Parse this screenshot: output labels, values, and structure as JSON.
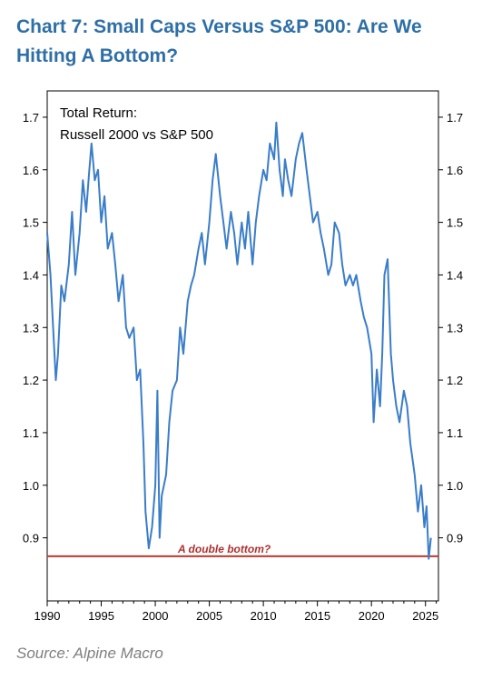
{
  "title": "Chart 7: Small Caps Versus S&P 500: Are We Hitting A Bottom?",
  "source": "Source: Alpine Macro",
  "chart_data": {
    "type": "line",
    "title_line1": "Total Return:",
    "title_line2": "Russell 2000 vs S&P 500",
    "annotation": "A double bottom?",
    "reference_line": {
      "y": 0.865,
      "color": "#c0392b"
    },
    "series_color": "#3a7dc9",
    "xlim": [
      1990,
      2026.2
    ],
    "ylim": [
      0.78,
      1.75
    ],
    "x_ticks": [
      1990,
      1995,
      2000,
      2005,
      2010,
      2015,
      2020,
      2025
    ],
    "y_ticks": [
      0.9,
      1.0,
      1.1,
      1.2,
      1.3,
      1.4,
      1.5,
      1.6,
      1.7
    ],
    "y_tick_labels": [
      "0.9",
      "1.0",
      "1.1",
      "1.2",
      "1.3",
      "1.4",
      "1.5",
      "1.6",
      "1.7"
    ],
    "grid": false,
    "series": [
      {
        "x": [
          1990.0,
          1990.3,
          1990.6,
          1990.8,
          1991.0,
          1991.3,
          1991.6,
          1992.0,
          1992.3,
          1992.6,
          1993.0,
          1993.3,
          1993.6,
          1993.9,
          1994.1,
          1994.4,
          1994.7,
          1995.0,
          1995.3,
          1995.6,
          1996.0,
          1996.3,
          1996.6,
          1997.0,
          1997.3,
          1997.6,
          1998.0,
          1998.3,
          1998.6,
          1998.9,
          1999.1,
          1999.4,
          1999.7,
          2000.0,
          2000.2,
          2000.4,
          2000.6,
          2000.8,
          2001.0,
          2001.3,
          2001.6,
          2002.0,
          2002.3,
          2002.6,
          2003.0,
          2003.3,
          2003.6,
          2004.0,
          2004.3,
          2004.6,
          2005.0,
          2005.3,
          2005.6,
          2006.0,
          2006.3,
          2006.6,
          2007.0,
          2007.3,
          2007.6,
          2008.0,
          2008.3,
          2008.6,
          2009.0,
          2009.3,
          2009.6,
          2010.0,
          2010.3,
          2010.6,
          2011.0,
          2011.2,
          2011.5,
          2011.8,
          2012.0,
          2012.3,
          2012.6,
          2013.0,
          2013.3,
          2013.6,
          2014.0,
          2014.3,
          2014.6,
          2015.0,
          2015.3,
          2015.6,
          2016.0,
          2016.3,
          2016.6,
          2017.0,
          2017.3,
          2017.6,
          2018.0,
          2018.3,
          2018.6,
          2019.0,
          2019.3,
          2019.6,
          2020.0,
          2020.2,
          2020.5,
          2020.8,
          2021.0,
          2021.2,
          2021.5,
          2021.8,
          2022.0,
          2022.3,
          2022.6,
          2023.0,
          2023.3,
          2023.6,
          2024.0,
          2024.3,
          2024.6,
          2024.9,
          2025.1,
          2025.3,
          2025.5
        ],
        "y": [
          1.48,
          1.4,
          1.28,
          1.2,
          1.25,
          1.38,
          1.35,
          1.42,
          1.52,
          1.4,
          1.48,
          1.58,
          1.52,
          1.6,
          1.65,
          1.58,
          1.6,
          1.5,
          1.55,
          1.45,
          1.48,
          1.42,
          1.35,
          1.4,
          1.3,
          1.28,
          1.3,
          1.2,
          1.22,
          1.08,
          0.95,
          0.88,
          0.92,
          1.0,
          1.18,
          0.9,
          0.98,
          1.0,
          1.02,
          1.12,
          1.18,
          1.2,
          1.3,
          1.25,
          1.35,
          1.38,
          1.4,
          1.45,
          1.48,
          1.42,
          1.5,
          1.58,
          1.63,
          1.55,
          1.5,
          1.45,
          1.52,
          1.48,
          1.42,
          1.5,
          1.45,
          1.52,
          1.42,
          1.5,
          1.55,
          1.6,
          1.58,
          1.65,
          1.62,
          1.69,
          1.6,
          1.55,
          1.62,
          1.58,
          1.55,
          1.62,
          1.65,
          1.67,
          1.6,
          1.55,
          1.5,
          1.52,
          1.48,
          1.45,
          1.4,
          1.42,
          1.5,
          1.48,
          1.42,
          1.38,
          1.4,
          1.38,
          1.4,
          1.35,
          1.32,
          1.3,
          1.25,
          1.12,
          1.22,
          1.15,
          1.25,
          1.4,
          1.43,
          1.25,
          1.2,
          1.15,
          1.12,
          1.18,
          1.15,
          1.08,
          1.02,
          0.95,
          1.0,
          0.92,
          0.96,
          0.86,
          0.9
        ]
      }
    ]
  }
}
